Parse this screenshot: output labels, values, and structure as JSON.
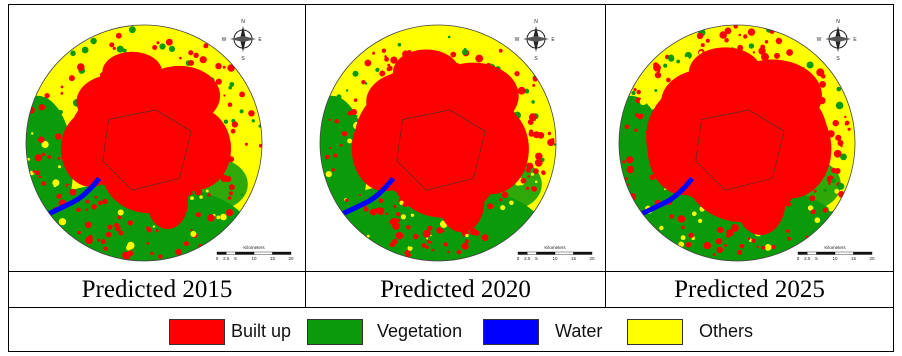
{
  "panels": [
    {
      "caption": "Predicted 2015",
      "urban_spread": 0.55
    },
    {
      "caption": "Predicted 2020",
      "urban_spread": 0.68
    },
    {
      "caption": "Predicted 2025",
      "urban_spread": 0.8
    }
  ],
  "compass": {
    "n": "N",
    "s": "S",
    "e": "E",
    "w": "W"
  },
  "scale_bar": {
    "title": "Kilometers",
    "ticks": [
      "0",
      "2.5",
      "5",
      "10",
      "15",
      "20"
    ]
  },
  "legend": [
    {
      "label": "Built up",
      "color": "#ff0000"
    },
    {
      "label": "Vegetation",
      "color": "#0a9a0a"
    },
    {
      "label": "Water",
      "color": "#0000ff"
    },
    {
      "label": "Others",
      "color": "#ffff00"
    }
  ],
  "colors": {
    "built_up": "#ff0000",
    "vegetation": "#0a9a0a",
    "water": "#0000ff",
    "others": "#ffff00"
  }
}
